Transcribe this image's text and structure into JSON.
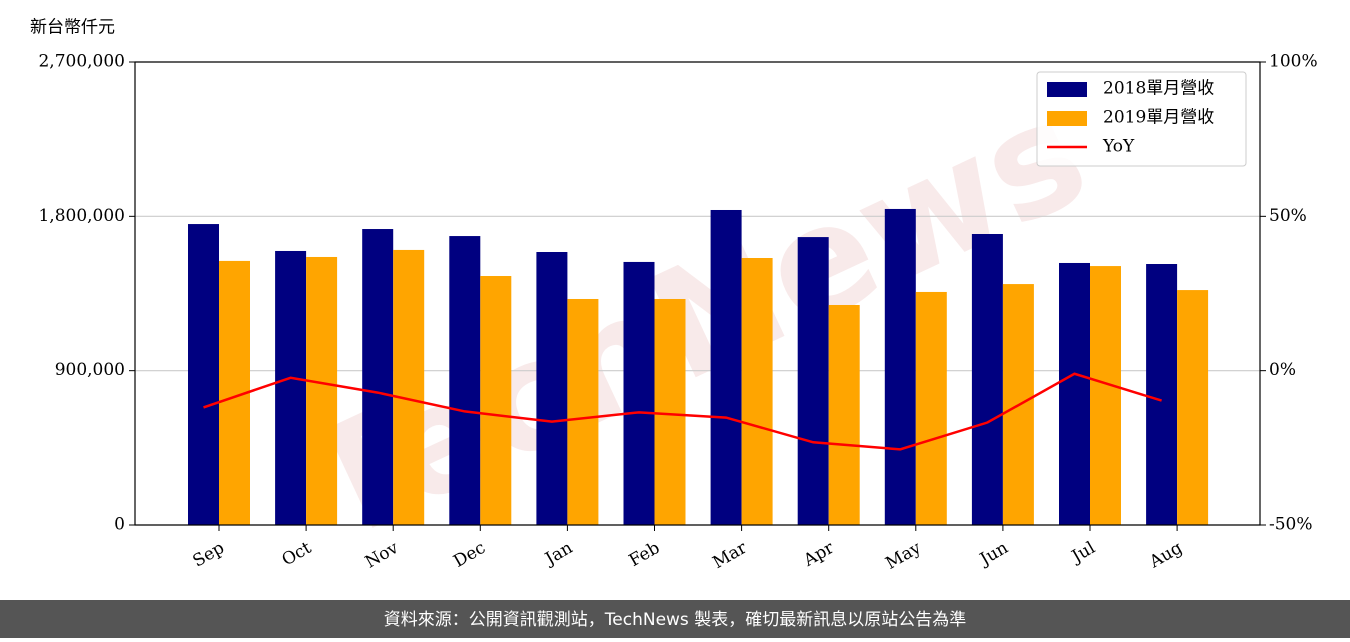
{
  "chart_data": {
    "type": "bar-line",
    "y_label": "新台幣仟元",
    "categories": [
      "Sep",
      "Oct",
      "Nov",
      "Dec",
      "Jan",
      "Feb",
      "Mar",
      "Apr",
      "May",
      "Jun",
      "Jul",
      "Aug"
    ],
    "series": [
      {
        "name": "2018單月營收",
        "color": "#000080",
        "type": "bar",
        "values": [
          1755000,
          1598000,
          1726000,
          1685000,
          1592000,
          1534000,
          1837000,
          1679000,
          1843000,
          1697000,
          1528000,
          1522000
        ]
      },
      {
        "name": "2019單月營收",
        "color": "#ffa500",
        "type": "bar",
        "values": [
          1540000,
          1563000,
          1604000,
          1452000,
          1318000,
          1318000,
          1557000,
          1283000,
          1359000,
          1405000,
          1510000,
          1370000
        ]
      },
      {
        "name": "YoY",
        "color": "#ff0000",
        "type": "line",
        "axis": "y2",
        "values": [
          -11.9,
          -2.3,
          -7.1,
          -13.2,
          -16.5,
          -13.5,
          -15.2,
          -23.2,
          -25.5,
          -16.8,
          -1.0,
          -9.7
        ]
      }
    ],
    "ylim": [
      0,
      2700000
    ],
    "yticks": [
      0,
      {
        "value": 900000,
        "label": "900,000"
      },
      {
        "value": 1800000,
        "label": "1,800,000"
      },
      {
        "value": 2700000,
        "label": "2,700,000"
      }
    ],
    "y2lim": [
      -50,
      100
    ],
    "y2ticks": [
      {
        "value": -50,
        "label": "-50%"
      },
      {
        "value": 0,
        "label": "0%"
      },
      {
        "value": 50,
        "label": "50%"
      },
      {
        "value": 100,
        "label": "100%"
      }
    ],
    "grid": true,
    "legend": "upper right",
    "watermark": "TechNews",
    "footer": "資料來源：公開資訊觀測站，TechNews 製表，確切最新訊息以原站公告為準"
  }
}
